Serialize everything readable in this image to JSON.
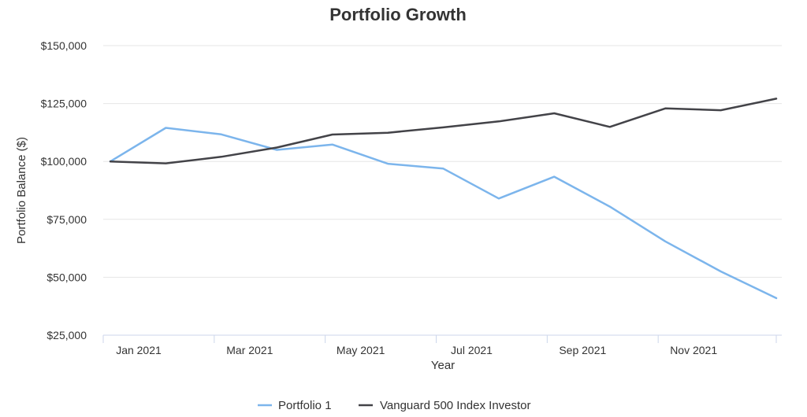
{
  "chart_data": {
    "type": "line",
    "title": "Portfolio Growth",
    "xlabel": "Year",
    "ylabel": "Portfolio Balance ($)",
    "ylim": [
      25000,
      150000
    ],
    "yticks": [
      "$25,000",
      "$50,000",
      "$75,000",
      "$100,000",
      "$125,000",
      "$150,000"
    ],
    "ytick_values": [
      25000,
      50000,
      75000,
      100000,
      125000,
      150000
    ],
    "x": [
      "Jan 2021",
      "Feb 2021",
      "Mar 2021",
      "Apr 2021",
      "May 2021",
      "Jun 2021",
      "Jul 2021",
      "Aug 2021",
      "Sep 2021",
      "Oct 2021",
      "Nov 2021",
      "Dec 2021",
      "Jan 2022"
    ],
    "xticks": [
      "Jan 2021",
      "Mar 2021",
      "May 2021",
      "Jul 2021",
      "Sep 2021",
      "Nov 2021"
    ],
    "grid": true,
    "legend_position": "bottom",
    "series": [
      {
        "name": "Portfolio 1",
        "color": "#7cb5ec",
        "values": [
          100000,
          114500,
          111700,
          105000,
          107300,
          99000,
          96900,
          84000,
          93400,
          80500,
          65500,
          52500,
          41000
        ]
      },
      {
        "name": "Vanguard 500 Index Investor",
        "color": "#434348",
        "values": [
          100000,
          99200,
          102000,
          106000,
          111600,
          112400,
          114700,
          117300,
          120800,
          114900,
          122900,
          122100,
          127100
        ]
      }
    ]
  }
}
